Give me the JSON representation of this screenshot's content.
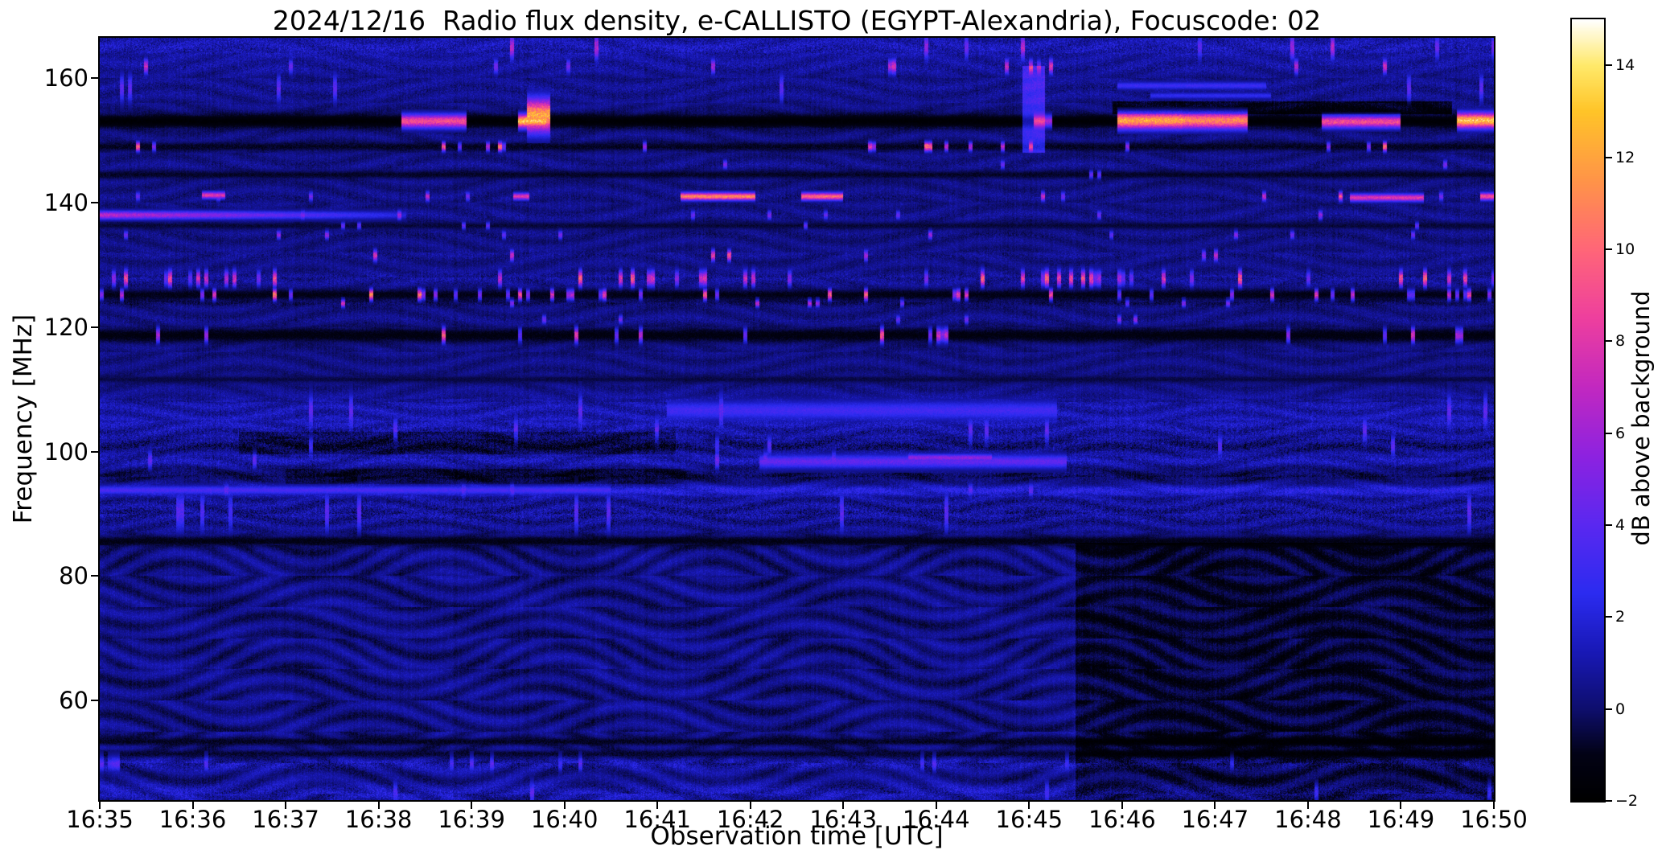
{
  "chart_data": {
    "type": "heatmap",
    "title": "2024/12/16  Radio flux density, e-CALLISTO (EGYPT-Alexandria), Focuscode: 02",
    "xlabel": "Observation time [UTC]",
    "ylabel": "Frequency [MHz]",
    "x_ticks": [
      "16:35",
      "16:36",
      "16:37",
      "16:38",
      "16:39",
      "16:40",
      "16:41",
      "16:42",
      "16:43",
      "16:44",
      "16:45",
      "16:46",
      "16:47",
      "16:48",
      "16:49",
      "16:50"
    ],
    "y_ticks": [
      160,
      140,
      120,
      100,
      80,
      60
    ],
    "x_range_minutes": [
      0,
      15
    ],
    "y_range_mhz": [
      44,
      166.5
    ],
    "grid": false,
    "colorbar": {
      "label": "dB above background",
      "range": [
        -2,
        15
      ],
      "ticks": [
        {
          "v": 14,
          "label": "14"
        },
        {
          "v": 12,
          "label": "12"
        },
        {
          "v": 10,
          "label": "10"
        },
        {
          "v": 8,
          "label": "8"
        },
        {
          "v": 6,
          "label": "6"
        },
        {
          "v": 4,
          "label": "4"
        },
        {
          "v": 2,
          "label": "2"
        },
        {
          "v": 0,
          "label": "0"
        },
        {
          "v": -2,
          "label": "−2"
        }
      ],
      "stops": [
        [
          -2,
          "#000000"
        ],
        [
          -1,
          "#020215"
        ],
        [
          0,
          "#0e0e6e"
        ],
        [
          1.2,
          "#1818b4"
        ],
        [
          2.5,
          "#2b2bf0"
        ],
        [
          4,
          "#5a28f0"
        ],
        [
          5.5,
          "#8d22e0"
        ],
        [
          7,
          "#c228c0"
        ],
        [
          8.5,
          "#ee3f9e"
        ],
        [
          10,
          "#ff6678"
        ],
        [
          11.5,
          "#ff9448"
        ],
        [
          13,
          "#ffc428"
        ],
        [
          14,
          "#ffe96a"
        ],
        [
          15,
          "#ffffff"
        ]
      ]
    },
    "texture": {
      "base": 0.2,
      "base_noise": 1.0,
      "column_noise": 0.22,
      "lower_amp": 0.6,
      "mid_amp": 0.45,
      "upper_amp": 0.32
    },
    "bands": [
      {
        "name": "top-edge-speckle",
        "f": 165.0,
        "sigma": 1.3,
        "mode": "add",
        "level": 0.9,
        "noise": 1.1,
        "density": 0.05,
        "burst_max": 8
      },
      {
        "name": "rfi-162",
        "f": 161.9,
        "sigma": 0.8,
        "mode": "add",
        "level": 0.45,
        "noise": 0.8,
        "density": 0.05,
        "burst_max": 9
      },
      {
        "name": "band-158",
        "f": 158.4,
        "sigma": 1.5,
        "mode": "add",
        "level": 0.25,
        "noise": 0.6,
        "density": 0.02,
        "burst_max": 4
      },
      {
        "name": "rfi-153-blanked",
        "f": 153.1,
        "sigma": 0.8,
        "mode": "set",
        "level": -1.75,
        "noise": 0.25,
        "density": 0,
        "burst_max": 0
      },
      {
        "name": "rfi-149",
        "f": 149.0,
        "sigma": 0.5,
        "mode": "set",
        "level": -0.9,
        "noise": 0.5,
        "density": 0.1,
        "burst_max": 11
      },
      {
        "name": "band-146",
        "f": 146.1,
        "sigma": 0.5,
        "mode": "add",
        "level": 0.15,
        "noise": 0.5,
        "density": 0.02,
        "burst_max": 5
      },
      {
        "name": "line-144-dark",
        "f": 144.5,
        "sigma": 0.45,
        "mode": "set",
        "level": -0.8,
        "noise": 0.35,
        "density": 0.01,
        "burst_max": 4
      },
      {
        "name": "rfi-141",
        "f": 141.0,
        "sigma": 0.5,
        "mode": "add",
        "level": 0.1,
        "noise": 0.5,
        "density": 0.05,
        "burst_max": 9
      },
      {
        "name": "rfi-138",
        "f": 138.0,
        "sigma": 0.5,
        "mode": "add",
        "level": 0.2,
        "noise": 0.5,
        "density": 0.03,
        "burst_max": 6
      },
      {
        "name": "line-136-dark",
        "f": 136.3,
        "sigma": 0.4,
        "mode": "set",
        "level": -0.6,
        "noise": 0.35,
        "density": 0.01,
        "burst_max": 4
      },
      {
        "name": "rfi-135",
        "f": 134.8,
        "sigma": 0.45,
        "mode": "add",
        "level": 0.0,
        "noise": 0.5,
        "density": 0.04,
        "burst_max": 6
      },
      {
        "name": "rfi-131",
        "f": 131.5,
        "sigma": 0.6,
        "mode": "add",
        "level": 0.2,
        "noise": 0.6,
        "density": 0.08,
        "burst_max": 9
      },
      {
        "name": "rfi-128-speckle",
        "f": 127.8,
        "sigma": 0.9,
        "mode": "add",
        "level": 0.35,
        "noise": 0.8,
        "density": 0.2,
        "burst_max": 10
      },
      {
        "name": "rfi-125-dark",
        "f": 125.2,
        "sigma": 0.6,
        "mode": "set",
        "level": -1.1,
        "noise": 0.4,
        "density": 0.16,
        "burst_max": 11
      },
      {
        "name": "line-124",
        "f": 123.8,
        "sigma": 0.4,
        "mode": "add",
        "level": -0.4,
        "noise": 0.5,
        "density": 0.07,
        "burst_max": 8
      },
      {
        "name": "rfi-121",
        "f": 121.2,
        "sigma": 0.5,
        "mode": "add",
        "level": 0.1,
        "noise": 0.5,
        "density": 0.04,
        "burst_max": 6
      },
      {
        "name": "rfi-119-dark",
        "f": 118.7,
        "sigma": 0.8,
        "mode": "set",
        "level": -1.25,
        "noise": 0.4,
        "density": 0.11,
        "burst_max": 10
      },
      {
        "name": "line-111-dark",
        "f": 111.6,
        "sigma": 0.4,
        "mode": "set",
        "level": -0.5,
        "noise": 0.3,
        "density": 0,
        "burst_max": 0
      },
      {
        "name": "band-106-bright",
        "f": 106.6,
        "sigma": 1.8,
        "mode": "add",
        "level": 0.7,
        "noise": 0.8,
        "density": 0.03,
        "burst_max": 4
      },
      {
        "name": "band-103",
        "f": 103.4,
        "sigma": 1.5,
        "mode": "add",
        "level": 0.55,
        "noise": 1.0,
        "density": 0.04,
        "burst_max": 4
      },
      {
        "name": "band-101-dark",
        "f": 101.0,
        "sigma": 1.1,
        "mode": "add",
        "level": -0.3,
        "noise": 1.0,
        "density": 0.02,
        "burst_max": 3
      },
      {
        "name": "band-98-bright",
        "f": 98.6,
        "sigma": 1.0,
        "mode": "add",
        "level": 0.8,
        "noise": 1.0,
        "density": 0.04,
        "burst_max": 5
      },
      {
        "name": "line-96-dark",
        "f": 96.2,
        "sigma": 0.8,
        "mode": "add",
        "level": -0.7,
        "noise": 0.6,
        "density": 0,
        "burst_max": 0
      },
      {
        "name": "line-94-bright",
        "f": 93.8,
        "sigma": 0.7,
        "mode": "add",
        "level": 1.5,
        "noise": 0.8,
        "density": 0.03,
        "burst_max": 4
      },
      {
        "name": "band-90-speckle",
        "f": 90.3,
        "sigma": 2.2,
        "mode": "add",
        "level": 0.35,
        "noise": 1.1,
        "density": 0.03,
        "burst_max": 3
      },
      {
        "name": "line-86-dark",
        "f": 85.6,
        "sigma": 0.6,
        "mode": "set",
        "level": -1.1,
        "noise": 0.4,
        "density": 0,
        "burst_max": 0
      },
      {
        "name": "line-53-dark",
        "f": 53.4,
        "sigma": 0.45,
        "mode": "set",
        "level": -0.9,
        "noise": 0.5,
        "density": 0,
        "burst_max": 0
      },
      {
        "name": "line-51-dark",
        "f": 51.4,
        "sigma": 0.45,
        "mode": "set",
        "level": -0.8,
        "noise": 0.5,
        "density": 0,
        "burst_max": 0
      },
      {
        "name": "band-50-speckle",
        "f": 49.8,
        "sigma": 0.8,
        "mode": "add",
        "level": 0.7,
        "noise": 1.0,
        "density": 0.05,
        "burst_max": 3
      },
      {
        "name": "bottom-edge",
        "f": 45.2,
        "sigma": 1.2,
        "mode": "add",
        "level": 0.8,
        "noise": 1.0,
        "density": 0.04,
        "burst_max": 3
      }
    ],
    "segments": [
      {
        "f": 153.1,
        "halfwidth": 0.9,
        "t0": 3.25,
        "t1": 3.95,
        "v": 9
      },
      {
        "f": 153.1,
        "halfwidth": 0.9,
        "t0": 4.5,
        "t1": 4.8,
        "v": 13
      },
      {
        "f": 154.0,
        "halfwidth": 2.2,
        "t0": 4.6,
        "t1": 4.85,
        "v": 12
      },
      {
        "f": 153.2,
        "halfwidth": 1.1,
        "t0": 10.95,
        "t1": 11.65,
        "v": 12
      },
      {
        "f": 153.2,
        "halfwidth": 1.1,
        "t0": 11.65,
        "t1": 12.35,
        "v": 11
      },
      {
        "f": 153.0,
        "halfwidth": 0.8,
        "t0": 13.15,
        "t1": 14.0,
        "v": 9
      },
      {
        "f": 153.2,
        "halfwidth": 1.0,
        "t0": 14.6,
        "t1": 15.0,
        "v": 13
      },
      {
        "f": 153.1,
        "halfwidth": 0.8,
        "t0": 10.05,
        "t1": 10.25,
        "v": 6
      },
      {
        "f": 141.0,
        "halfwidth": 0.5,
        "t0": 6.25,
        "t1": 7.05,
        "v": 11
      },
      {
        "f": 141.0,
        "halfwidth": 0.5,
        "t0": 7.55,
        "t1": 8.0,
        "v": 10
      },
      {
        "f": 141.2,
        "halfwidth": 0.45,
        "t0": 1.1,
        "t1": 1.35,
        "v": 8
      },
      {
        "f": 141.0,
        "halfwidth": 0.45,
        "t0": 4.45,
        "t1": 4.62,
        "v": 8
      },
      {
        "f": 140.8,
        "halfwidth": 0.5,
        "t0": 13.45,
        "t1": 14.25,
        "v": 8
      },
      {
        "f": 141.0,
        "halfwidth": 0.5,
        "t0": 14.85,
        "t1": 15.0,
        "v": 9
      },
      {
        "f": 138.0,
        "halfwidth": 0.55,
        "t0": 0.0,
        "t1": 3.3,
        "v": 7,
        "v2": 2
      },
      {
        "f": 158.8,
        "halfwidth": 0.5,
        "t0": 10.95,
        "t1": 12.55,
        "v": 3
      },
      {
        "f": 157.2,
        "halfwidth": 0.4,
        "t0": 11.3,
        "t1": 12.6,
        "v": 2.6
      },
      {
        "f": 106.6,
        "halfwidth": 1.3,
        "t0": 6.1,
        "t1": 10.3,
        "v": 3.2
      },
      {
        "f": 98.4,
        "halfwidth": 0.9,
        "t0": 7.1,
        "t1": 10.4,
        "v": 4.2
      },
      {
        "f": 99.0,
        "halfwidth": 0.5,
        "t0": 8.7,
        "t1": 9.6,
        "v": 5.5
      },
      {
        "f": 93.8,
        "halfwidth": 0.6,
        "t0": 0.0,
        "t1": 5.5,
        "v": 3.4
      }
    ],
    "patches": [
      {
        "name": "dark-lower-right",
        "t0": 10.5,
        "t1": 15,
        "f0": 44,
        "f1": 85.4,
        "dv": -1.0
      },
      {
        "name": "blue-column-1645",
        "t0": 9.93,
        "t1": 10.17,
        "f0": 148,
        "f1": 162,
        "dv": 2.8
      },
      {
        "name": "dark-155-right",
        "t0": 10.9,
        "t1": 14.55,
        "f0": 154.2,
        "f1": 156.3,
        "dv": -1.4
      },
      {
        "name": "dark-100MHz-left",
        "t0": 1.5,
        "t1": 6.2,
        "f0": 99.5,
        "f1": 103.2,
        "dv": -0.9
      },
      {
        "name": "dark-96MHz-left",
        "t0": 2.0,
        "t1": 6.3,
        "f0": 94.8,
        "f1": 97.3,
        "dv": -0.7
      }
    ]
  }
}
